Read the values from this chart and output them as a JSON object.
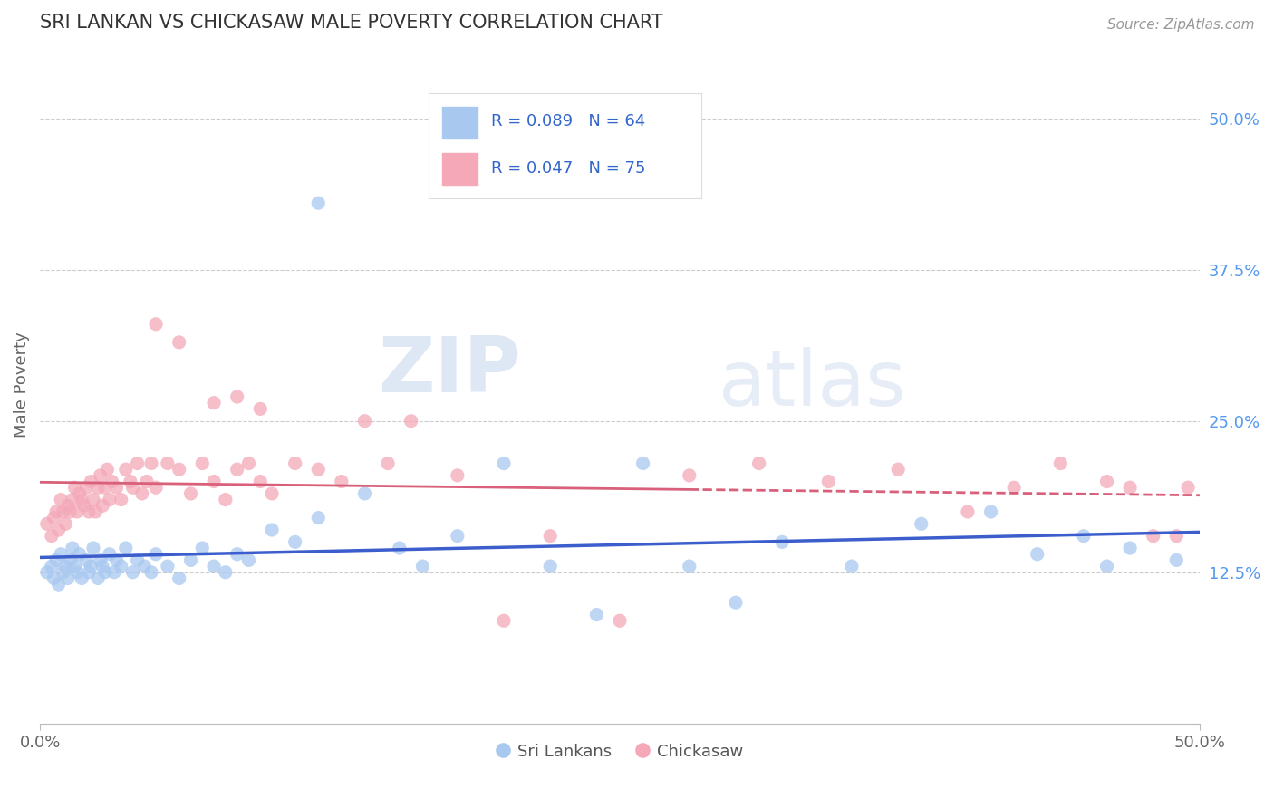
{
  "title": "SRI LANKAN VS CHICKASAW MALE POVERTY CORRELATION CHART",
  "source_text": "Source: ZipAtlas.com",
  "ylabel": "Male Poverty",
  "xlim": [
    0.0,
    0.5
  ],
  "ylim": [
    0.0,
    0.56
  ],
  "background_color": "#ffffff",
  "grid_color": "#cccccc",
  "sri_lankan_color": "#a8c8f0",
  "chickasaw_color": "#f4a8b8",
  "sri_lankan_line_color": "#3b5ecc",
  "chickasaw_line_color": "#d9607a",
  "legend_label1": "Sri Lankans",
  "legend_label2": "Chickasaw",
  "watermark_zip": "ZIP",
  "watermark_atlas": "atlas",
  "r1": 0.089,
  "n1": 64,
  "r2": 0.047,
  "n2": 75,
  "ytick_vals": [
    0.125,
    0.25,
    0.375,
    0.5
  ],
  "ytick_labels": [
    "12.5%",
    "25.0%",
    "37.5%",
    "50.0%"
  ],
  "xtick_vals": [
    0.0,
    0.5
  ],
  "xtick_labels": [
    "0.0%",
    "50.0%"
  ],
  "sl_x": [
    0.003,
    0.005,
    0.006,
    0.007,
    0.008,
    0.009,
    0.01,
    0.011,
    0.012,
    0.013,
    0.014,
    0.015,
    0.016,
    0.017,
    0.018,
    0.02,
    0.021,
    0.022,
    0.023,
    0.025,
    0.026,
    0.027,
    0.028,
    0.03,
    0.032,
    0.033,
    0.035,
    0.037,
    0.04,
    0.042,
    0.045,
    0.048,
    0.05,
    0.055,
    0.06,
    0.065,
    0.07,
    0.075,
    0.08,
    0.085,
    0.09,
    0.1,
    0.11,
    0.12,
    0.14,
    0.155,
    0.165,
    0.18,
    0.2,
    0.22,
    0.24,
    0.26,
    0.28,
    0.3,
    0.32,
    0.35,
    0.38,
    0.41,
    0.43,
    0.45,
    0.46,
    0.47,
    0.49,
    0.12
  ],
  "sl_y": [
    0.125,
    0.13,
    0.12,
    0.135,
    0.115,
    0.14,
    0.125,
    0.13,
    0.12,
    0.135,
    0.145,
    0.13,
    0.125,
    0.14,
    0.12,
    0.135,
    0.125,
    0.13,
    0.145,
    0.12,
    0.135,
    0.13,
    0.125,
    0.14,
    0.125,
    0.135,
    0.13,
    0.145,
    0.125,
    0.135,
    0.13,
    0.125,
    0.14,
    0.13,
    0.12,
    0.135,
    0.145,
    0.13,
    0.125,
    0.14,
    0.135,
    0.16,
    0.15,
    0.17,
    0.19,
    0.145,
    0.13,
    0.155,
    0.215,
    0.13,
    0.09,
    0.215,
    0.13,
    0.1,
    0.15,
    0.13,
    0.165,
    0.175,
    0.14,
    0.155,
    0.13,
    0.145,
    0.135,
    0.43
  ],
  "chi_x": [
    0.003,
    0.005,
    0.006,
    0.007,
    0.008,
    0.009,
    0.01,
    0.011,
    0.012,
    0.013,
    0.014,
    0.015,
    0.016,
    0.017,
    0.018,
    0.019,
    0.02,
    0.021,
    0.022,
    0.023,
    0.024,
    0.025,
    0.026,
    0.027,
    0.028,
    0.029,
    0.03,
    0.031,
    0.033,
    0.035,
    0.037,
    0.039,
    0.04,
    0.042,
    0.044,
    0.046,
    0.048,
    0.05,
    0.055,
    0.06,
    0.065,
    0.07,
    0.075,
    0.08,
    0.085,
    0.09,
    0.095,
    0.1,
    0.11,
    0.12,
    0.13,
    0.14,
    0.15,
    0.16,
    0.18,
    0.2,
    0.22,
    0.25,
    0.28,
    0.31,
    0.34,
    0.37,
    0.4,
    0.42,
    0.44,
    0.46,
    0.47,
    0.48,
    0.49,
    0.495,
    0.05,
    0.06,
    0.075,
    0.085,
    0.095
  ],
  "chi_y": [
    0.165,
    0.155,
    0.17,
    0.175,
    0.16,
    0.185,
    0.175,
    0.165,
    0.18,
    0.175,
    0.185,
    0.195,
    0.175,
    0.19,
    0.185,
    0.18,
    0.195,
    0.175,
    0.2,
    0.185,
    0.175,
    0.195,
    0.205,
    0.18,
    0.195,
    0.21,
    0.185,
    0.2,
    0.195,
    0.185,
    0.21,
    0.2,
    0.195,
    0.215,
    0.19,
    0.2,
    0.215,
    0.195,
    0.215,
    0.21,
    0.19,
    0.215,
    0.2,
    0.185,
    0.21,
    0.215,
    0.2,
    0.19,
    0.215,
    0.21,
    0.2,
    0.25,
    0.215,
    0.25,
    0.205,
    0.085,
    0.155,
    0.085,
    0.205,
    0.215,
    0.2,
    0.21,
    0.175,
    0.195,
    0.215,
    0.2,
    0.195,
    0.155,
    0.155,
    0.195,
    0.33,
    0.315,
    0.265,
    0.27,
    0.26
  ]
}
